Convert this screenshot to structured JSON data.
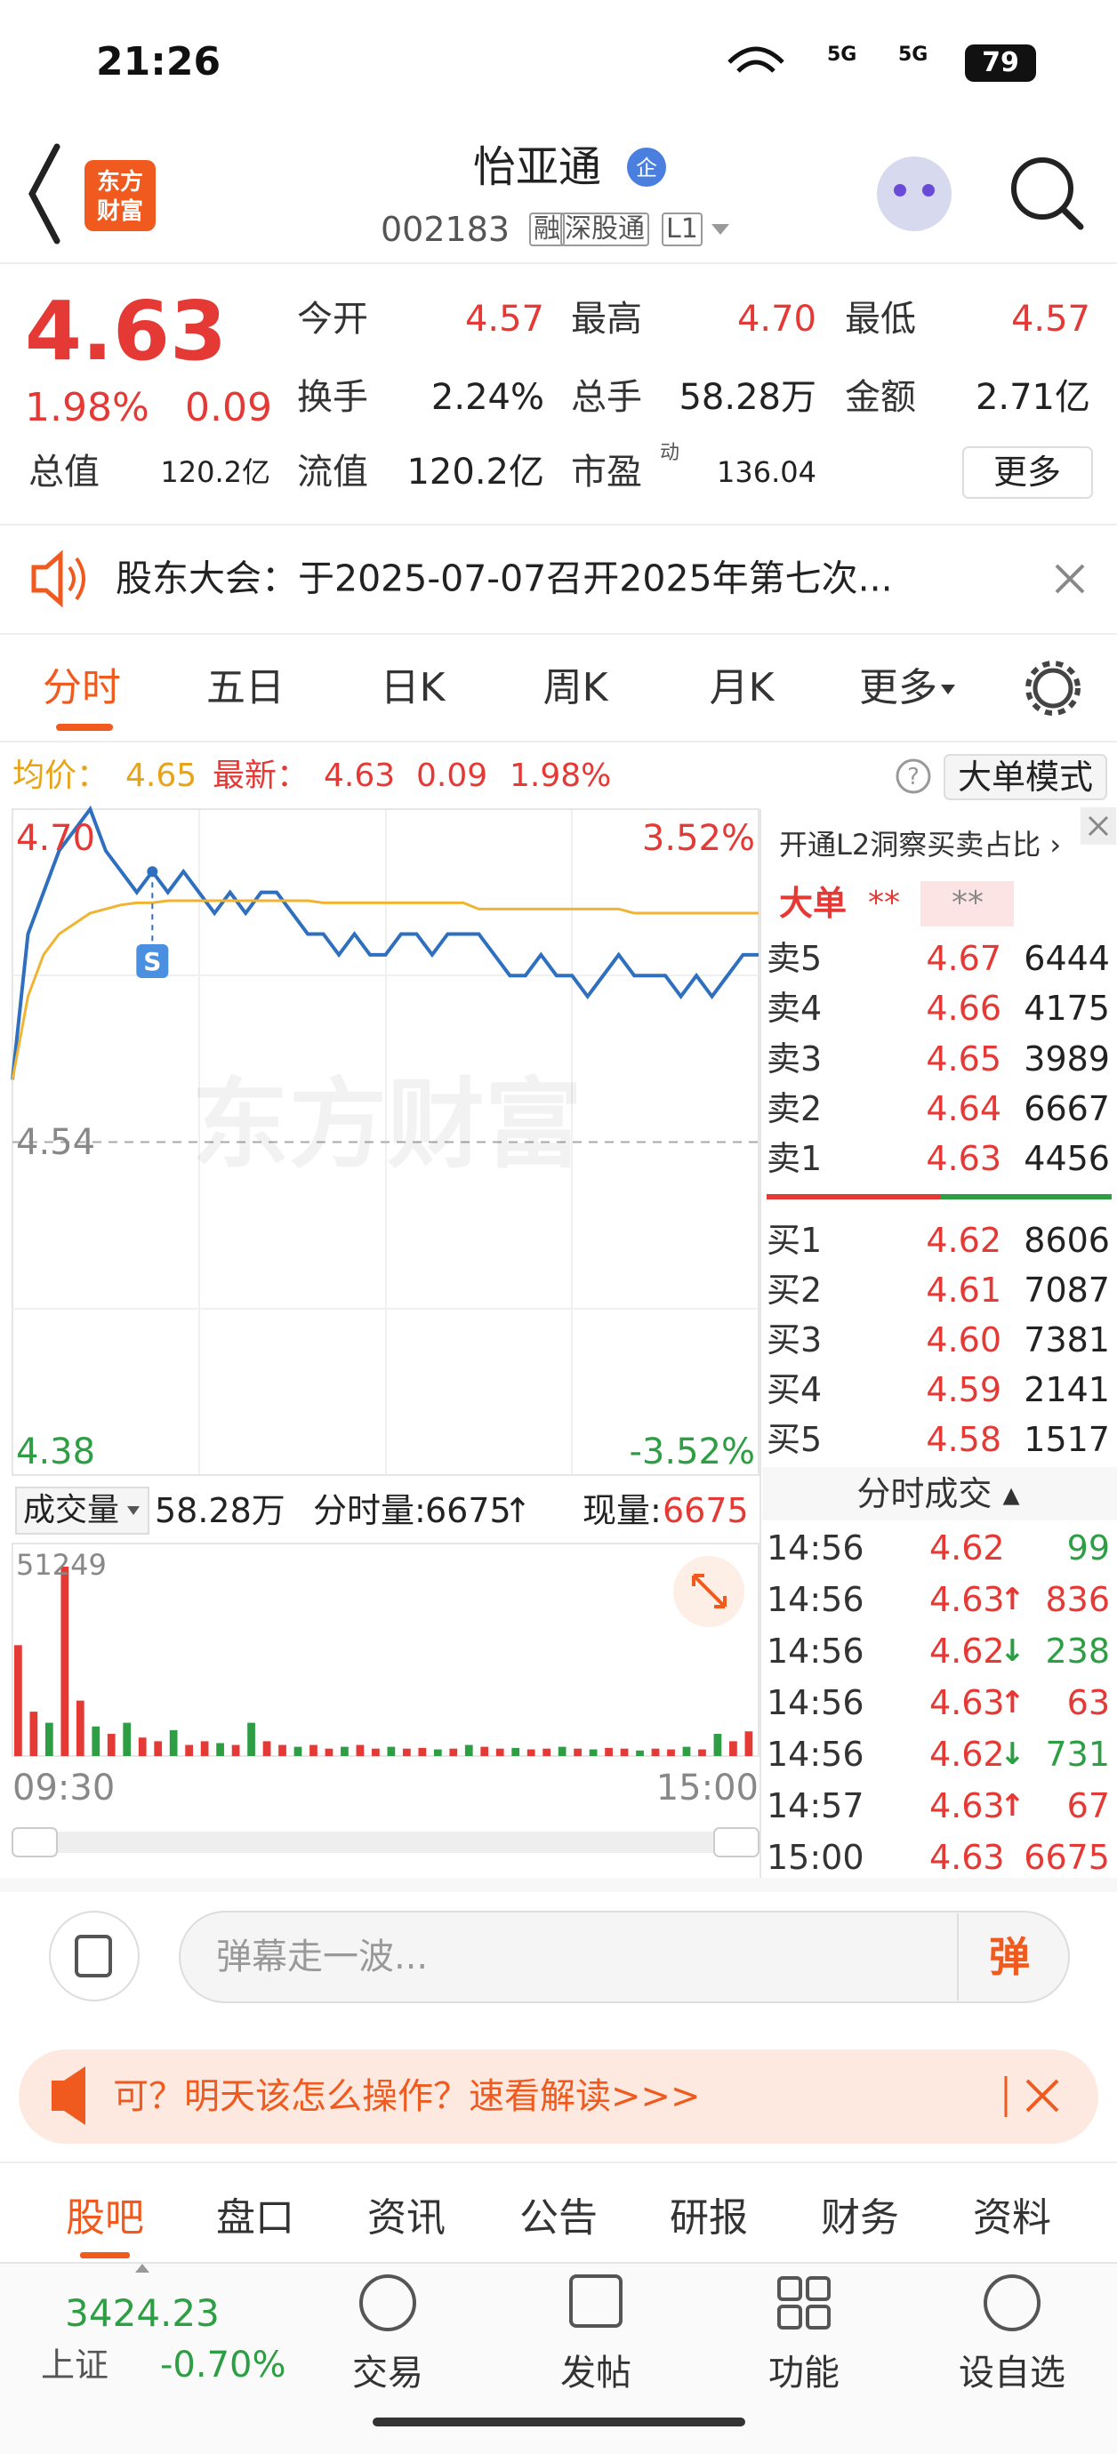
{
  "status_bar": {
    "time": "21:26",
    "network": "5G",
    "network2": "5G",
    "battery": "79"
  },
  "header": {
    "logo": [
      "东方",
      "财富"
    ],
    "title": "怡亚通",
    "badge": "企",
    "code": "002183",
    "tags": [
      "融",
      "深股通",
      "L1"
    ]
  },
  "quote": {
    "price": "4.63",
    "change_pct": "1.98%",
    "change": "0.09",
    "fields": [
      {
        "label": "今开",
        "value": "4.57"
      },
      {
        "label": "最高",
        "value": "4.70"
      },
      {
        "label": "最低",
        "value": "4.57"
      },
      {
        "label": "换手",
        "value": "2.24%"
      },
      {
        "label": "总手",
        "value": "58.28万"
      },
      {
        "label": "金额",
        "value": "2.71亿"
      },
      {
        "label": "总值",
        "value": "120.2亿"
      },
      {
        "label": "流值",
        "value": "120.2亿"
      },
      {
        "label": "市盈",
        "value": "136.04"
      }
    ],
    "pe_sup": "动",
    "more": "更多"
  },
  "notice": "股东大会：于2025-07-07召开2025年第七次...",
  "tabs": [
    "分时",
    "五日",
    "日K",
    "周K",
    "月K",
    "更多"
  ],
  "legend": {
    "avg_label": "均价：",
    "avg": "4.65",
    "latest_label": "最新：",
    "latest": "4.63",
    "change": "0.09",
    "change_pct": "1.98%",
    "help": "?",
    "mode": "大单模式"
  },
  "watermark": "东方财富",
  "sell_marker": "S",
  "chart_data": [
    {
      "type": "line",
      "xlim": [
        0,
        240
      ],
      "x": [
        0,
        5,
        10,
        15,
        20,
        25,
        30,
        35,
        40,
        45,
        50,
        55,
        60,
        65,
        70,
        75,
        80,
        85,
        90,
        95,
        100,
        105,
        110,
        115,
        120,
        125,
        130,
        135,
        140,
        145,
        150,
        155,
        160,
        165,
        170,
        175,
        180,
        185,
        190,
        195,
        200,
        205,
        210,
        215,
        220,
        225,
        230,
        235,
        240
      ],
      "ylim": [
        4.38,
        4.7
      ],
      "yticks": [
        {
          "value": 4.7,
          "label": "4.70"
        },
        {
          "value": 4.54,
          "label": "4.54"
        },
        {
          "value": 4.38,
          "label": "4.38"
        }
      ],
      "y2lim": [
        -3.52,
        3.52
      ],
      "y2ticks": [
        {
          "value": 3.52,
          "label": "3.52%"
        },
        {
          "value": -3.52,
          "label": "-3.52%"
        }
      ],
      "series": [
        {
          "name": "最新",
          "color": "#2f6fbf",
          "values": [
            4.57,
            4.64,
            4.66,
            4.68,
            4.69,
            4.7,
            4.68,
            4.67,
            4.66,
            4.67,
            4.66,
            4.67,
            4.66,
            4.65,
            4.66,
            4.65,
            4.66,
            4.66,
            4.65,
            4.64,
            4.64,
            4.63,
            4.64,
            4.63,
            4.63,
            4.64,
            4.64,
            4.63,
            4.64,
            4.64,
            4.64,
            4.63,
            4.62,
            4.62,
            4.63,
            4.62,
            4.62,
            4.61,
            4.62,
            4.63,
            4.62,
            4.62,
            4.62,
            4.61,
            4.62,
            4.61,
            4.62,
            4.63,
            4.63
          ]
        },
        {
          "name": "均价",
          "color": "#f0b432",
          "values": [
            4.57,
            4.61,
            4.63,
            4.64,
            4.645,
            4.65,
            4.652,
            4.654,
            4.655,
            4.655,
            4.656,
            4.656,
            4.656,
            4.656,
            4.656,
            4.656,
            4.656,
            4.656,
            4.656,
            4.656,
            4.655,
            4.655,
            4.655,
            4.655,
            4.655,
            4.655,
            4.655,
            4.655,
            4.655,
            4.655,
            4.652,
            4.652,
            4.652,
            4.652,
            4.652,
            4.652,
            4.652,
            4.652,
            4.652,
            4.652,
            4.65,
            4.65,
            4.65,
            4.65,
            4.65,
            4.65,
            4.65,
            4.65,
            4.65
          ]
        }
      ]
    },
    {
      "type": "bar",
      "title": "成交量",
      "total": "58.28万",
      "minute_label": "分时量:",
      "minute_vol": "6675",
      "minute_arrow": "↑",
      "now_label": "现量:",
      "now_vol": "6675",
      "xlim": [
        0,
        240
      ],
      "x": [
        0,
        5,
        10,
        15,
        20,
        25,
        30,
        35,
        40,
        45,
        50,
        55,
        60,
        65,
        70,
        75,
        80,
        85,
        90,
        95,
        100,
        105,
        110,
        115,
        120,
        125,
        130,
        135,
        140,
        145,
        150,
        155,
        160,
        165,
        170,
        175,
        180,
        185,
        190,
        195,
        200,
        205,
        210,
        215,
        220,
        225,
        230,
        235
      ],
      "xticks": [
        {
          "value": 0,
          "label": "09:30"
        },
        {
          "value": 240,
          "label": "15:00"
        }
      ],
      "ylim": [
        0,
        51249
      ],
      "yticks": [
        51249
      ],
      "values": [
        30000,
        12000,
        9000,
        51249,
        15000,
        8000,
        6000,
        9000,
        5000,
        4000,
        7000,
        3000,
        4000,
        3500,
        3000,
        9000,
        4000,
        3000,
        2500,
        3000,
        2000,
        2500,
        3000,
        2000,
        2500,
        2000,
        2200,
        1800,
        2000,
        3000,
        2500,
        2000,
        2200,
        1800,
        2000,
        2500,
        2000,
        1800,
        2200,
        2000,
        1500,
        2000,
        1800,
        2500,
        1800,
        6000,
        4000,
        6675
      ],
      "colors": [
        "#e53935",
        "#e53935",
        "#2e9e45",
        "#e53935",
        "#e53935",
        "#2e9e45",
        "#e53935",
        "#2e9e45",
        "#e53935",
        "#e53935",
        "#2e9e45",
        "#e53935",
        "#e53935",
        "#2e9e45",
        "#e53935",
        "#2e9e45",
        "#e53935",
        "#e53935",
        "#2e9e45",
        "#e53935",
        "#e53935",
        "#2e9e45",
        "#e53935",
        "#e53935",
        "#2e9e45",
        "#e53935",
        "#e53935",
        "#2e9e45",
        "#e53935",
        "#2e9e45",
        "#e53935",
        "#e53935",
        "#2e9e45",
        "#e53935",
        "#e53935",
        "#2e9e45",
        "#e53935",
        "#2e9e45",
        "#e53935",
        "#e53935",
        "#2e9e45",
        "#e53935",
        "#e53935",
        "#2e9e45",
        "#e53935",
        "#2e9e45",
        "#e53935",
        "#e53935"
      ]
    }
  ],
  "orderbook": {
    "promo": "开通L2洞察买卖占比 ›",
    "big_order": "大单",
    "stars": [
      "**",
      "**"
    ],
    "asks": [
      {
        "label": "卖5",
        "price": "4.67",
        "volume": "6444"
      },
      {
        "label": "卖4",
        "price": "4.66",
        "volume": "4175"
      },
      {
        "label": "卖3",
        "price": "4.65",
        "volume": "3989"
      },
      {
        "label": "卖2",
        "price": "4.64",
        "volume": "6667"
      },
      {
        "label": "卖1",
        "price": "4.63",
        "volume": "4456"
      }
    ],
    "bids": [
      {
        "label": "买1",
        "price": "4.62",
        "volume": "8606"
      },
      {
        "label": "买2",
        "price": "4.61",
        "volume": "7087"
      },
      {
        "label": "买3",
        "price": "4.60",
        "volume": "7381"
      },
      {
        "label": "买4",
        "price": "4.59",
        "volume": "2141"
      },
      {
        "label": "买5",
        "price": "4.58",
        "volume": "1517"
      }
    ]
  },
  "trades": {
    "title": "分时成交 ▴",
    "rows": [
      {
        "time": "14:56",
        "price": "4.62",
        "volume": "99",
        "color": "#2e9e45"
      },
      {
        "time": "14:56",
        "price": "4.63",
        "arrow": "↑",
        "volume": "836",
        "color": "#e53935"
      },
      {
        "time": "14:56",
        "price": "4.62",
        "arrow": "↓",
        "volume": "238",
        "color": "#2e9e45"
      },
      {
        "time": "14:56",
        "price": "4.63",
        "arrow": "↑",
        "volume": "63",
        "color": "#e53935"
      },
      {
        "time": "14:56",
        "price": "4.62",
        "arrow": "↓",
        "volume": "731",
        "color": "#2e9e45"
      },
      {
        "time": "14:57",
        "price": "4.63",
        "arrow": "↑",
        "volume": "67",
        "color": "#e53935"
      },
      {
        "time": "15:00",
        "price": "4.63",
        "volume": "6675",
        "color": "#e53935"
      }
    ]
  },
  "comment": {
    "placeholder": "弹幕走一波...",
    "button": "弹"
  },
  "banner": "可？明天该怎么操作？速看解读>>>",
  "sub_tabs": [
    "股吧",
    "盘口",
    "资讯",
    "公告",
    "研报",
    "财务",
    "资料"
  ],
  "bottom_nav": {
    "index_value": "3424.23",
    "index_name": "上证",
    "index_change": "-0.70%",
    "items": [
      "交易",
      "发帖",
      "功能",
      "设自选"
    ]
  }
}
